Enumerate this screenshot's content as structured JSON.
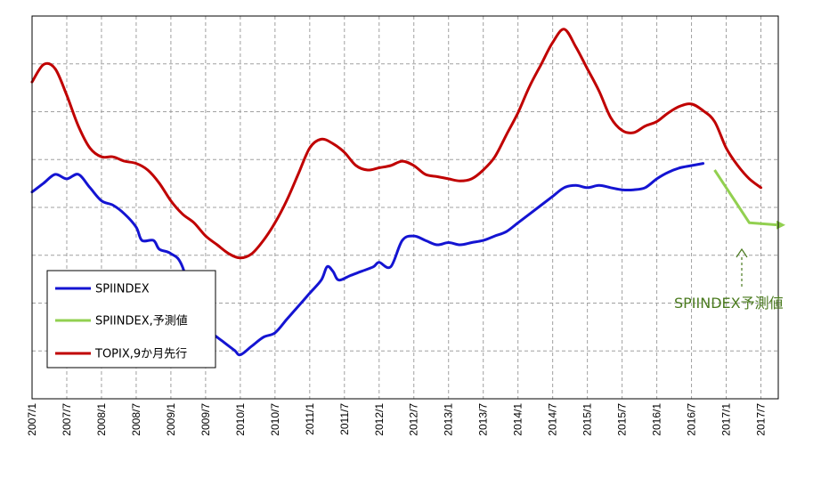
{
  "chart_data": {
    "type": "line",
    "x_range": [
      "2007/1",
      "2017/10"
    ],
    "x_tick_labels": [
      "2007/1",
      "2007/7",
      "2008/1",
      "2008/7",
      "2009/1",
      "2009/7",
      "2010/1",
      "2010/7",
      "2011/1",
      "2011/7",
      "2012/1",
      "2012/7",
      "2013/1",
      "2013/7",
      "2014/1",
      "2014/7",
      "2015/1",
      "2015/7",
      "2016/1",
      "2016/7",
      "2017/1",
      "2017/7"
    ],
    "y_tick_labels": [],
    "grid": true,
    "legend_position": "bottom-left",
    "series": [
      {
        "name": "SPIINDEX",
        "color": "#1414d2",
        "points": [
          [
            "2007/1",
            0.32
          ],
          [
            "2007/3",
            0.34
          ],
          [
            "2007/5",
            0.36
          ],
          [
            "2007/7",
            0.35
          ],
          [
            "2007/9",
            0.36
          ],
          [
            "2007/11",
            0.33
          ],
          [
            "2008/1",
            0.3
          ],
          [
            "2008/3",
            0.29
          ],
          [
            "2008/5",
            0.27
          ],
          [
            "2008/7",
            0.24
          ],
          [
            "2008/8",
            0.21
          ],
          [
            "2008/10",
            0.21
          ],
          [
            "2008/11",
            0.19
          ],
          [
            "2009/1",
            0.18
          ],
          [
            "2009/3",
            0.15
          ],
          [
            "2009/6",
            0.02
          ],
          [
            "2009/8",
            0.0
          ],
          [
            "2009/10",
            -0.02
          ],
          [
            "2009/12",
            -0.04
          ],
          [
            "2010/1",
            -0.05
          ],
          [
            "2010/3",
            -0.03
          ],
          [
            "2010/5",
            -0.01
          ],
          [
            "2010/7",
            0.0
          ],
          [
            "2010/9",
            0.03
          ],
          [
            "2010/11",
            0.06
          ],
          [
            "2011/1",
            0.09
          ],
          [
            "2011/3",
            0.12
          ],
          [
            "2011/4",
            0.15
          ],
          [
            "2011/5",
            0.14
          ],
          [
            "2011/6",
            0.12
          ],
          [
            "2011/8",
            0.13
          ],
          [
            "2011/10",
            0.14
          ],
          [
            "2011/12",
            0.15
          ],
          [
            "2012/1",
            0.16
          ],
          [
            "2012/3",
            0.15
          ],
          [
            "2012/5",
            0.21
          ],
          [
            "2012/7",
            0.22
          ],
          [
            "2012/9",
            0.21
          ],
          [
            "2012/11",
            0.2
          ],
          [
            "2013/1",
            0.205
          ],
          [
            "2013/3",
            0.2
          ],
          [
            "2013/5",
            0.205
          ],
          [
            "2013/7",
            0.21
          ],
          [
            "2013/9",
            0.22
          ],
          [
            "2013/11",
            0.23
          ],
          [
            "2014/1",
            0.25
          ],
          [
            "2014/3",
            0.27
          ],
          [
            "2014/5",
            0.29
          ],
          [
            "2014/7",
            0.31
          ],
          [
            "2014/9",
            0.33
          ],
          [
            "2014/11",
            0.335
          ],
          [
            "2015/1",
            0.33
          ],
          [
            "2015/3",
            0.335
          ],
          [
            "2015/5",
            0.33
          ],
          [
            "2015/7",
            0.325
          ],
          [
            "2015/9",
            0.325
          ],
          [
            "2015/11",
            0.33
          ],
          [
            "2016/1",
            0.35
          ],
          [
            "2016/3",
            0.365
          ],
          [
            "2016/5",
            0.375
          ],
          [
            "2016/7",
            0.38
          ],
          [
            "2016/9",
            0.385
          ]
        ]
      },
      {
        "name": "SPIINDEX,予測値",
        "color": "#92d050",
        "points": [
          [
            "2016/11",
            0.37
          ],
          [
            "2017/1",
            0.33
          ],
          [
            "2017/3",
            0.29
          ],
          [
            "2017/5",
            0.25
          ],
          [
            "2017/10",
            0.245
          ]
        ]
      },
      {
        "name": "TOPIX,9か月先行",
        "color": "#c00000",
        "points": [
          [
            "2007/1",
            0.57
          ],
          [
            "2007/3",
            0.61
          ],
          [
            "2007/5",
            0.6
          ],
          [
            "2007/7",
            0.54
          ],
          [
            "2007/9",
            0.47
          ],
          [
            "2007/11",
            0.42
          ],
          [
            "2008/1",
            0.4
          ],
          [
            "2008/3",
            0.4
          ],
          [
            "2008/5",
            0.39
          ],
          [
            "2008/7",
            0.385
          ],
          [
            "2008/9",
            0.37
          ],
          [
            "2008/11",
            0.34
          ],
          [
            "2009/1",
            0.3
          ],
          [
            "2009/3",
            0.27
          ],
          [
            "2009/5",
            0.25
          ],
          [
            "2009/7",
            0.22
          ],
          [
            "2009/9",
            0.2
          ],
          [
            "2009/11",
            0.18
          ],
          [
            "2010/1",
            0.17
          ],
          [
            "2010/3",
            0.18
          ],
          [
            "2010/5",
            0.21
          ],
          [
            "2010/7",
            0.25
          ],
          [
            "2010/9",
            0.3
          ],
          [
            "2010/11",
            0.36
          ],
          [
            "2011/1",
            0.42
          ],
          [
            "2011/3",
            0.44
          ],
          [
            "2011/5",
            0.43
          ],
          [
            "2011/7",
            0.41
          ],
          [
            "2011/9",
            0.38
          ],
          [
            "2011/11",
            0.37
          ],
          [
            "2012/1",
            0.375
          ],
          [
            "2012/3",
            0.38
          ],
          [
            "2012/5",
            0.39
          ],
          [
            "2012/7",
            0.38
          ],
          [
            "2012/9",
            0.36
          ],
          [
            "2012/11",
            0.355
          ],
          [
            "2013/1",
            0.35
          ],
          [
            "2013/3",
            0.345
          ],
          [
            "2013/5",
            0.35
          ],
          [
            "2013/7",
            0.37
          ],
          [
            "2013/9",
            0.4
          ],
          [
            "2013/11",
            0.45
          ],
          [
            "2014/1",
            0.5
          ],
          [
            "2014/3",
            0.56
          ],
          [
            "2014/5",
            0.61
          ],
          [
            "2014/7",
            0.66
          ],
          [
            "2014/9",
            0.69
          ],
          [
            "2014/11",
            0.65
          ],
          [
            "2015/1",
            0.6
          ],
          [
            "2015/3",
            0.55
          ],
          [
            "2015/5",
            0.49
          ],
          [
            "2015/7",
            0.46
          ],
          [
            "2015/9",
            0.455
          ],
          [
            "2015/11",
            0.47
          ],
          [
            "2016/1",
            0.48
          ],
          [
            "2016/3",
            0.5
          ],
          [
            "2016/5",
            0.515
          ],
          [
            "2016/7",
            0.52
          ],
          [
            "2016/9",
            0.505
          ],
          [
            "2016/11",
            0.48
          ],
          [
            "2017/1",
            0.42
          ],
          [
            "2017/3",
            0.38
          ],
          [
            "2017/5",
            0.35
          ],
          [
            "2017/7",
            0.33
          ]
        ]
      }
    ],
    "annotation": {
      "text": "SPIINDEX予測値",
      "color": "#4a7a1e"
    }
  }
}
